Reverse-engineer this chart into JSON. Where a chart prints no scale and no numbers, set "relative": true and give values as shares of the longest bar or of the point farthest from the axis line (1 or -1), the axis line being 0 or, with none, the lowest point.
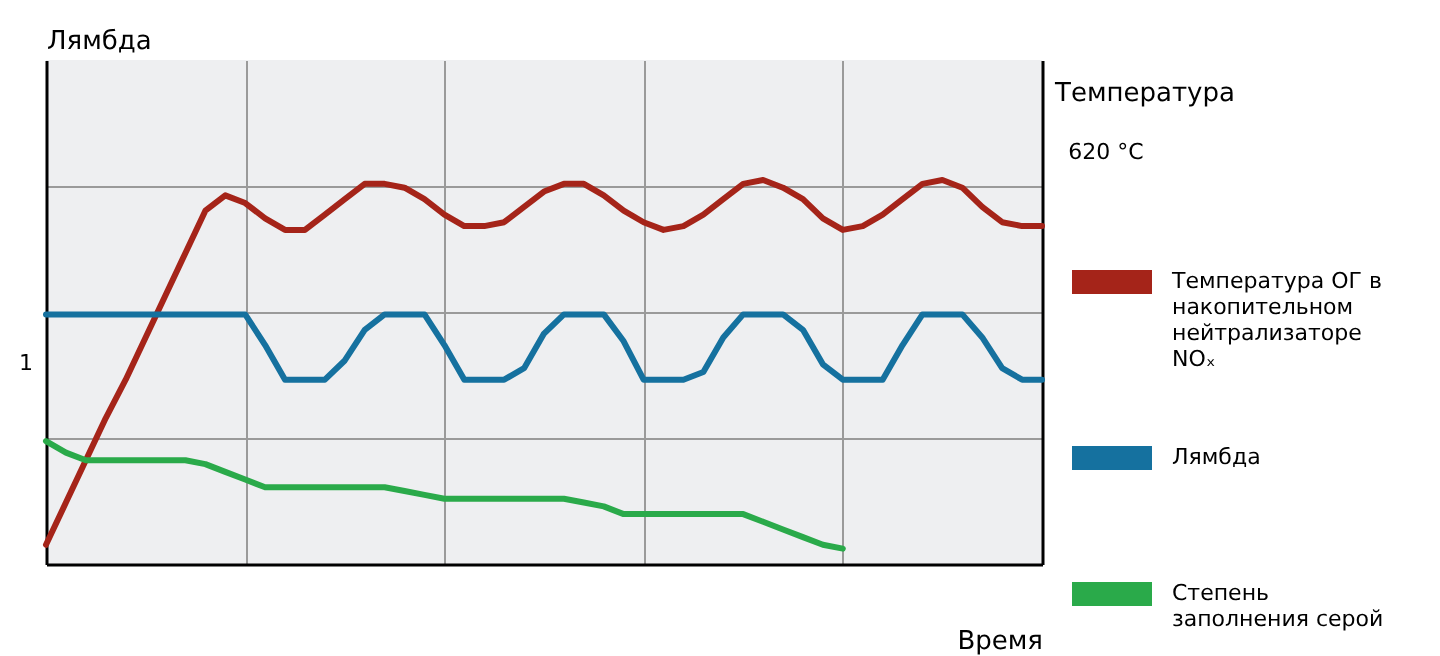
{
  "chart_data": {
    "type": "line",
    "relative": true,
    "xlabel": "Время",
    "ylabel": "Лямбда",
    "y2label": "Температура",
    "legend": "right",
    "grid": true,
    "annotations": [
      "1",
      "620 °C"
    ],
    "categories": [
      null,
      null,
      null,
      null,
      null,
      null,
      null,
      null,
      null,
      null,
      null,
      null,
      null,
      null,
      null,
      null,
      null,
      null,
      null,
      null,
      null,
      null,
      null,
      null,
      null,
      null,
      null,
      null,
      null,
      null,
      null,
      null,
      null,
      null,
      null,
      null,
      null,
      null,
      null,
      null,
      null,
      null,
      null,
      null,
      null,
      null,
      null,
      null,
      null,
      null,
      null
    ],
    "series": [
      {
        "name": "Температура ОГ в накопительном нейтрализаторе NOₓ",
        "color": "#a52419",
        "values": [
          0.05,
          0.16,
          0.27,
          0.38,
          0.48,
          0.59,
          0.7,
          0.81,
          0.92,
          0.96,
          0.94,
          0.9,
          0.87,
          0.87,
          0.91,
          0.95,
          0.99,
          0.99,
          0.98,
          0.95,
          0.91,
          0.88,
          0.88,
          0.89,
          0.93,
          0.97,
          0.99,
          0.99,
          0.96,
          0.92,
          0.89,
          0.87,
          0.88,
          0.91,
          0.95,
          0.99,
          1.0,
          0.98,
          0.95,
          0.9,
          0.87,
          0.88,
          0.91,
          0.95,
          0.99,
          1.0,
          0.98,
          0.93,
          0.89,
          0.88,
          0.88
        ]
      },
      {
        "name": "Лямбда",
        "color": "#15719f",
        "values": [
          0.65,
          0.65,
          0.65,
          0.65,
          0.65,
          0.65,
          0.65,
          0.65,
          0.65,
          0.65,
          0.65,
          0.57,
          0.48,
          0.48,
          0.48,
          0.53,
          0.61,
          0.65,
          0.65,
          0.65,
          0.57,
          0.48,
          0.48,
          0.48,
          0.51,
          0.6,
          0.65,
          0.65,
          0.65,
          0.58,
          0.48,
          0.48,
          0.48,
          0.5,
          0.59,
          0.65,
          0.65,
          0.65,
          0.61,
          0.52,
          0.48,
          0.48,
          0.48,
          0.57,
          0.65,
          0.65,
          0.65,
          0.59,
          0.51,
          0.48,
          0.48
        ]
      },
      {
        "name": "Степень заполнения серой",
        "color": "#2aaa4a",
        "values": [
          0.32,
          0.29,
          0.27,
          0.27,
          0.27,
          0.27,
          0.27,
          0.27,
          0.26,
          0.24,
          0.22,
          0.2,
          0.2,
          0.2,
          0.2,
          0.2,
          0.2,
          0.2,
          0.19,
          0.18,
          0.17,
          0.17,
          0.17,
          0.17,
          0.17,
          0.17,
          0.17,
          0.16,
          0.15,
          0.13,
          0.13,
          0.13,
          0.13,
          0.13,
          0.13,
          0.13,
          0.11,
          0.09,
          0.07,
          0.05,
          0.04,
          null,
          null,
          null,
          null,
          null,
          null,
          null,
          null,
          null,
          null
        ]
      }
    ]
  }
}
